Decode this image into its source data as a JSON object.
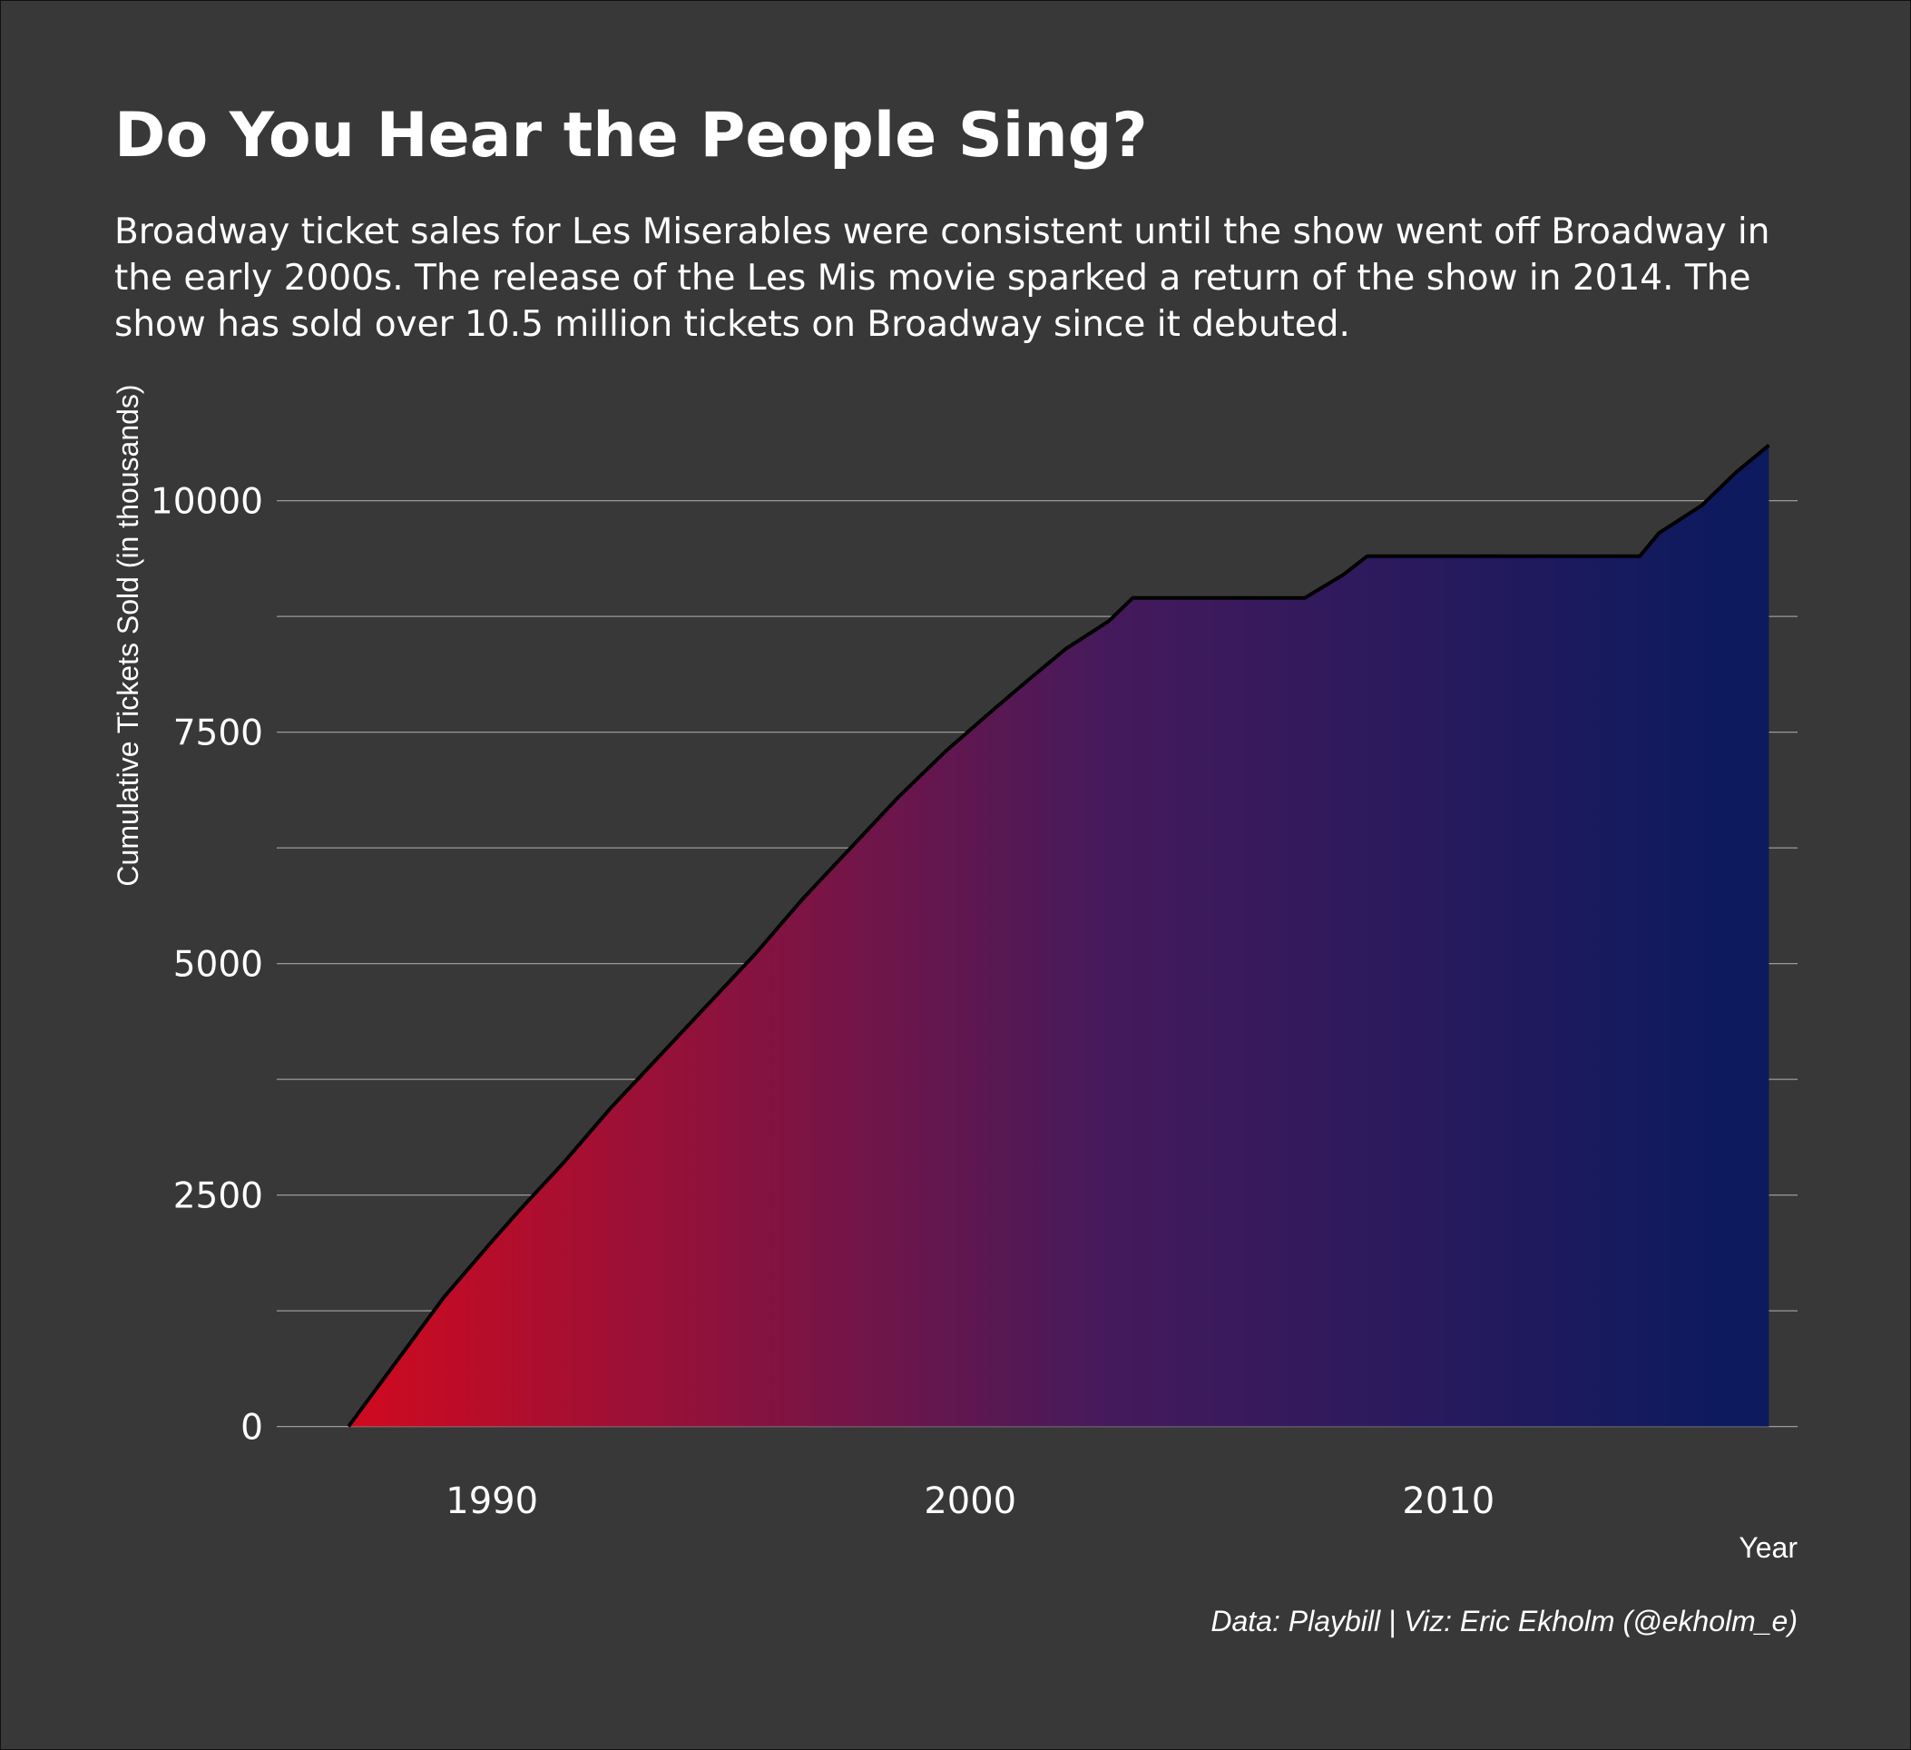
{
  "title": "Do You Hear the People Sing?",
  "subtitle": "Broadway ticket sales for Les Miserables were consistent until the show went off Broadway in the early 2000s. The release of the Les Mis movie sparked a return of the show in 2014. The show has sold over 10.5 million tickets on Broadway since it debuted.",
  "caption": "Data: Playbill | Viz: Eric Ekholm (@ekholm_e)",
  "colors": {
    "background": "#383838",
    "gridline": "#9a9a9a",
    "text": "#ffffff",
    "line": "#000000",
    "gradient_start": "#d10a1f",
    "gradient_mid": "#451a5c",
    "gradient_end": "#0d1a5e"
  },
  "chart_data": {
    "type": "area",
    "xlabel": "Year",
    "ylabel": "Cumulative Tickets Sold (in thousands)",
    "xlim": [
      1985.5,
      2017.3
    ],
    "ylim": [
      -200,
      10800
    ],
    "x_ticks": [
      1990,
      2000,
      2010
    ],
    "x_tick_labels": [
      "1990",
      "2000",
      "2010"
    ],
    "y_ticks": [
      0,
      2500,
      5000,
      7500,
      10000
    ],
    "y_tick_labels": [
      "0",
      "2500",
      "5000",
      "7500",
      "10000"
    ],
    "y_minor_gridlines": [
      1250,
      3750,
      6250,
      8750
    ],
    "grid": true,
    "fill": "horizontal gradient red to navy",
    "x": [
      1987.0,
      1988.0,
      1989.0,
      1990.0,
      1990.6,
      1991.5,
      1992.5,
      1993.5,
      1994.5,
      1995.5,
      1996.5,
      1997.5,
      1998.5,
      1999.5,
      2000.5,
      2001.3,
      2002.0,
      2002.9,
      2003.4,
      2004.5,
      2005.5,
      2006.5,
      2007.0,
      2007.8,
      2008.3,
      2010.0,
      2012.0,
      2014.0,
      2014.4,
      2015.3,
      2016.0,
      2016.7
    ],
    "y": [
      0,
      700,
      1400,
      2000,
      2350,
      2850,
      3450,
      4000,
      4550,
      5100,
      5700,
      6250,
      6800,
      7300,
      7750,
      8100,
      8400,
      8700,
      8950,
      8950,
      8950,
      8950,
      8950,
      9200,
      9400,
      9400,
      9400,
      9400,
      9650,
      9950,
      10300,
      10600
    ]
  }
}
